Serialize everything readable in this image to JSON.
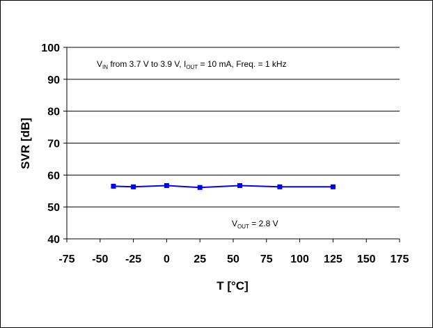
{
  "chart_data": {
    "type": "line",
    "xlabel": "T [°C]",
    "ylabel": "SVR [dB]",
    "xlim": [
      -75,
      175
    ],
    "ylim": [
      40,
      100
    ],
    "x_ticks": [
      "-75",
      "-50",
      "-25",
      "0",
      "25",
      "50",
      "75",
      "100",
      "125",
      "150",
      "175"
    ],
    "y_ticks": [
      "40",
      "50",
      "60",
      "70",
      "80",
      "90",
      "100"
    ],
    "grid": "horizontal",
    "series": [
      {
        "color": "#0000ff",
        "marker": "square",
        "x": [
          -40,
          -25,
          0,
          25,
          55,
          85,
          125
        ],
        "y": [
          56.5,
          56.3,
          56.7,
          56.1,
          56.7,
          56.3,
          56.3
        ]
      }
    ],
    "annotations": {
      "conditions": {
        "v": "V",
        "v_sub": "IN",
        "mid": " from 3.7 V to 3.9 V, I",
        "i_sub": "OUT",
        "tail": " = 10 mA, Freq. = 1 kHz"
      },
      "vout": {
        "v": "V",
        "v_sub": "OUT",
        "tail": " = 2.8 V"
      }
    }
  }
}
